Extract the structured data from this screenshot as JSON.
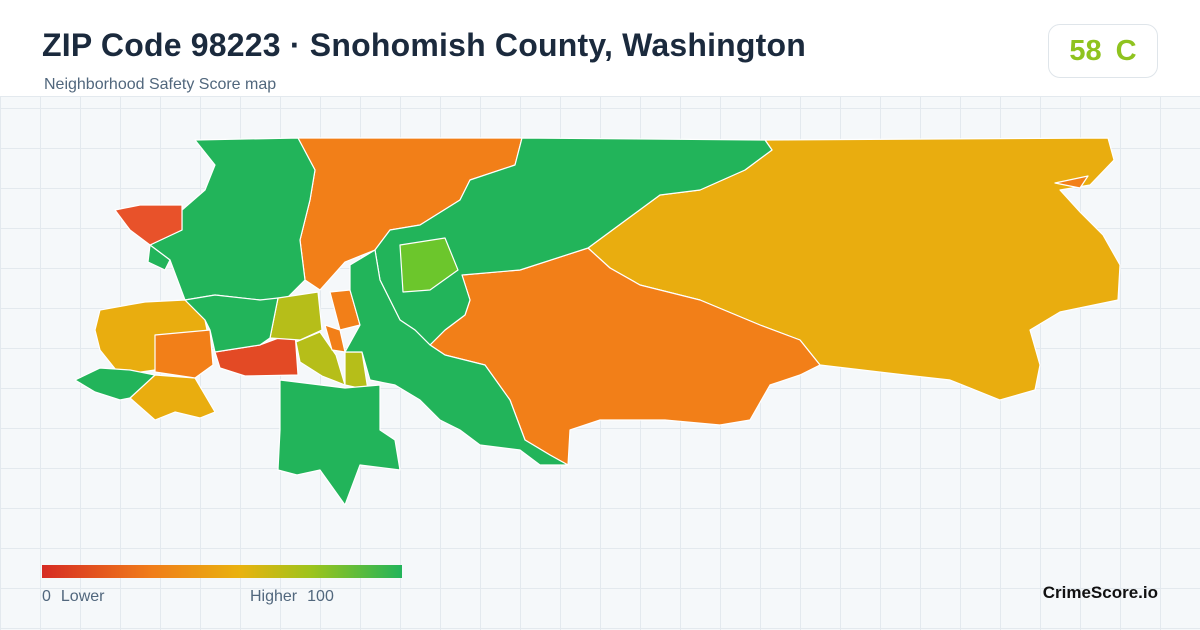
{
  "header": {
    "title": "ZIP Code 98223 · Snohomish County, Washington",
    "subtitle": "Neighborhood Safety Score map"
  },
  "score": {
    "value": "58",
    "grade": "C",
    "color": "#8fc31f"
  },
  "legend": {
    "low_value": "0",
    "low_label": "Lower",
    "high_label": "Higher",
    "high_value": "100",
    "colors": [
      "#d62b23",
      "#f07c1a",
      "#e9b20f",
      "#9cc41c",
      "#22b45a"
    ]
  },
  "brand": "CrimeScore.io",
  "palette": {
    "green": "#22b45a",
    "lightgreen": "#6cc62c",
    "yellowgreen": "#b6be19",
    "amber": "#e9ad0f",
    "orange": "#f27f18",
    "redorange": "#e8522a",
    "red": "#e34a25"
  }
}
